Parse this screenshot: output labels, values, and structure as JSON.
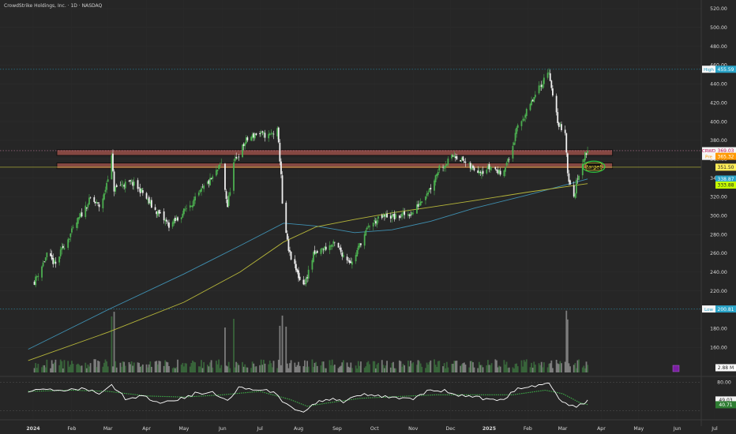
{
  "header": {
    "title": "CrowdStrike Holdings, Inc. · 1D · NASDAQ"
  },
  "colors": {
    "background": "#262626",
    "up": "#4caf50",
    "down": "#f0f0f0",
    "ma_blue": "#3f8fb0",
    "ma_yellow": "#b6b63a",
    "zone": "#a0524a",
    "rsi": "#ffffff",
    "rsi_ma": "#3fb24a"
  },
  "chart_data": {
    "type": "candlestick",
    "price_axis": {
      "range": [
        130,
        525
      ],
      "ticks": [
        520,
        500,
        480,
        460,
        440,
        420,
        400,
        380,
        360,
        340,
        320,
        300,
        280,
        260,
        240,
        220,
        200,
        180,
        160
      ]
    },
    "time_axis": {
      "labels": [
        "2024",
        "Feb",
        "Mar",
        "Apr",
        "May",
        "Jun",
        "Jul",
        "Aug",
        "Sep",
        "Oct",
        "Nov",
        "Dec",
        "2025",
        "Feb",
        "Mar",
        "Apr",
        "May",
        "Jun",
        "Jul"
      ]
    },
    "price_path": [
      [
        "2024-01-02",
        230
      ],
      [
        "2024-01-12",
        258
      ],
      [
        "2024-01-19",
        248
      ],
      [
        "2024-01-24",
        264
      ],
      [
        "2024-02-01",
        283
      ],
      [
        "2024-02-09",
        302
      ],
      [
        "2024-02-16",
        318
      ],
      [
        "2024-02-23",
        310
      ],
      [
        "2024-02-27",
        322
      ],
      [
        "2024-03-04",
        362
      ],
      [
        "2024-03-06",
        328
      ],
      [
        "2024-03-12",
        333
      ],
      [
        "2024-03-20",
        335
      ],
      [
        "2024-03-28",
        326
      ],
      [
        "2024-04-05",
        310
      ],
      [
        "2024-04-12",
        300
      ],
      [
        "2024-04-19",
        290
      ],
      [
        "2024-04-26",
        296
      ],
      [
        "2024-05-03",
        308
      ],
      [
        "2024-05-10",
        317
      ],
      [
        "2024-05-17",
        330
      ],
      [
        "2024-05-24",
        340
      ],
      [
        "2024-05-31",
        355
      ],
      [
        "2024-06-05",
        310
      ],
      [
        "2024-06-10",
        355
      ],
      [
        "2024-06-20",
        380
      ],
      [
        "2024-06-28",
        387
      ],
      [
        "2024-07-08",
        385
      ],
      [
        "2024-07-15",
        390
      ],
      [
        "2024-07-18",
        345
      ],
      [
        "2024-07-19",
        310
      ],
      [
        "2024-07-24",
        262
      ],
      [
        "2024-08-02",
        232
      ],
      [
        "2024-08-06",
        228
      ],
      [
        "2024-08-13",
        258
      ],
      [
        "2024-08-21",
        265
      ],
      [
        "2024-08-30",
        270
      ],
      [
        "2024-09-06",
        258
      ],
      [
        "2024-09-13",
        250
      ],
      [
        "2024-09-20",
        272
      ],
      [
        "2024-09-27",
        290
      ],
      [
        "2024-10-04",
        296
      ],
      [
        "2024-10-11",
        300
      ],
      [
        "2024-10-18",
        298
      ],
      [
        "2024-10-25",
        301
      ],
      [
        "2024-11-01",
        303
      ],
      [
        "2024-11-08",
        318
      ],
      [
        "2024-11-15",
        330
      ],
      [
        "2024-11-22",
        352
      ],
      [
        "2024-11-27",
        355
      ],
      [
        "2024-12-04",
        365
      ],
      [
        "2024-12-11",
        358
      ],
      [
        "2024-12-18",
        350
      ],
      [
        "2024-12-27",
        348
      ],
      [
        "2025-01-03",
        352
      ],
      [
        "2025-01-10",
        345
      ],
      [
        "2025-01-17",
        360
      ],
      [
        "2025-01-24",
        395
      ],
      [
        "2025-01-31",
        410
      ],
      [
        "2025-02-06",
        425
      ],
      [
        "2025-02-12",
        440
      ],
      [
        "2025-02-18",
        455
      ],
      [
        "2025-02-21",
        425
      ],
      [
        "2025-02-26",
        395
      ],
      [
        "2025-03-03",
        390
      ],
      [
        "2025-03-05",
        345
      ],
      [
        "2025-03-07",
        332
      ],
      [
        "2025-03-10",
        318
      ],
      [
        "2025-03-12",
        335
      ],
      [
        "2025-03-14",
        345
      ],
      [
        "2025-03-18",
        362
      ],
      [
        "2025-03-21",
        369
      ]
    ],
    "moving_averages": [
      {
        "color": "blue",
        "points": [
          [
            "2023-12-28",
            158
          ],
          [
            "2024-03-01",
            200
          ],
          [
            "2024-05-01",
            238
          ],
          [
            "2024-06-15",
            268
          ],
          [
            "2024-07-20",
            292
          ],
          [
            "2024-08-15",
            289
          ],
          [
            "2024-09-15",
            282
          ],
          [
            "2024-10-15",
            285
          ],
          [
            "2024-11-15",
            294
          ],
          [
            "2024-12-20",
            308
          ],
          [
            "2025-02-01",
            322
          ],
          [
            "2025-03-21",
            339
          ]
        ]
      },
      {
        "color": "yellow",
        "points": [
          [
            "2023-12-28",
            146
          ],
          [
            "2024-03-01",
            176
          ],
          [
            "2024-05-01",
            208
          ],
          [
            "2024-06-15",
            240
          ],
          [
            "2024-07-20",
            272
          ],
          [
            "2024-08-15",
            288
          ],
          [
            "2024-09-15",
            296
          ],
          [
            "2024-10-15",
            303
          ],
          [
            "2024-11-15",
            309
          ],
          [
            "2024-12-20",
            316
          ],
          [
            "2025-02-01",
            325
          ],
          [
            "2025-03-21",
            334
          ]
        ]
      }
    ],
    "resistance_zones": [
      {
        "top": 370,
        "bottom": 364
      },
      {
        "top": 356,
        "bottom": 350
      }
    ],
    "price_lines": [
      {
        "value": 455.59,
        "style": "dotted",
        "color": "#29a3c7"
      },
      {
        "value": 351.5,
        "style": "solid",
        "color": "#c8c83a"
      },
      {
        "value": 369.03,
        "style": "dotted",
        "color": "#e089b0"
      },
      {
        "value": 200.81,
        "style": "dotted",
        "color": "#29a3c7"
      }
    ],
    "annotations": [
      {
        "text": "target",
        "date": "2025-03-26",
        "price": 352
      }
    ],
    "price_labels": [
      {
        "prefix": "High",
        "value": "455.59",
        "price": 455.59,
        "bg": "#29a3c7",
        "fg": "#ffffff"
      },
      {
        "prefix": "CRWD",
        "value": "369.03",
        "price": 369.03,
        "bg": "#f5f5f5",
        "fg": "#c2185b"
      },
      {
        "prefix": "Pre",
        "value": "365.32",
        "price": 363,
        "bg": "#ff9800",
        "fg": "#ffffff"
      },
      {
        "prefix": "",
        "value": "351.50",
        "price": 351.5,
        "bg": "#ffee58",
        "fg": "#222222"
      },
      {
        "prefix": "",
        "value": "338.87",
        "price": 338.87,
        "bg": "#29a3c7",
        "fg": "#ffffff"
      },
      {
        "prefix": "",
        "value": "333.88",
        "price": 332.5,
        "bg": "#c6ff00",
        "fg": "#222222"
      },
      {
        "prefix": "Low",
        "value": "200.81",
        "price": 200.81,
        "bg": "#29a3c7",
        "fg": "#ffffff"
      }
    ],
    "volume": {
      "label": "2.88 M"
    },
    "rsi": {
      "range": [
        20,
        90
      ],
      "ticks": [
        "80.00"
      ],
      "labels": [
        {
          "value": "49.03",
          "level": 49,
          "bg": "#f5f5f5",
          "fg": "#222222"
        },
        {
          "value": "40.71",
          "level": 40.7,
          "bg": "#2e7d32",
          "fg": "#ffffff"
        }
      ],
      "path": [
        [
          "2023-12-28",
          62
        ],
        [
          "2024-01-12",
          68
        ],
        [
          "2024-01-26",
          64
        ],
        [
          "2024-02-09",
          70
        ],
        [
          "2024-02-23",
          60
        ],
        [
          "2024-03-04",
          74
        ],
        [
          "2024-03-15",
          52
        ],
        [
          "2024-03-29",
          55
        ],
        [
          "2024-04-12",
          46
        ],
        [
          "2024-04-26",
          50
        ],
        [
          "2024-05-10",
          60
        ],
        [
          "2024-05-24",
          62
        ],
        [
          "2024-06-05",
          50
        ],
        [
          "2024-06-14",
          70
        ],
        [
          "2024-06-28",
          68
        ],
        [
          "2024-07-12",
          63
        ],
        [
          "2024-07-19",
          48
        ],
        [
          "2024-07-26",
          35
        ],
        [
          "2024-08-05",
          28
        ],
        [
          "2024-08-12",
          38
        ],
        [
          "2024-08-23",
          52
        ],
        [
          "2024-09-06",
          45
        ],
        [
          "2024-09-20",
          58
        ],
        [
          "2024-10-04",
          56
        ],
        [
          "2024-10-18",
          54
        ],
        [
          "2024-11-01",
          52
        ],
        [
          "2024-11-15",
          66
        ],
        [
          "2024-11-29",
          64
        ],
        [
          "2024-12-13",
          54
        ],
        [
          "2024-12-27",
          52
        ],
        [
          "2025-01-10",
          48
        ],
        [
          "2025-01-24",
          68
        ],
        [
          "2025-02-07",
          72
        ],
        [
          "2025-02-18",
          78
        ],
        [
          "2025-02-26",
          50
        ],
        [
          "2025-03-06",
          42
        ],
        [
          "2025-03-12",
          36
        ],
        [
          "2025-03-18",
          44
        ],
        [
          "2025-03-21",
          49
        ]
      ],
      "ma_path": [
        [
          "2023-12-28",
          64
        ],
        [
          "2024-02-01",
          66
        ],
        [
          "2024-03-01",
          64
        ],
        [
          "2024-04-01",
          56
        ],
        [
          "2024-05-01",
          54
        ],
        [
          "2024-06-01",
          58
        ],
        [
          "2024-07-01",
          64
        ],
        [
          "2024-07-25",
          50
        ],
        [
          "2024-08-08",
          38
        ],
        [
          "2024-08-25",
          44
        ],
        [
          "2024-09-20",
          52
        ],
        [
          "2024-10-20",
          55
        ],
        [
          "2024-11-20",
          58
        ],
        [
          "2024-12-20",
          58
        ],
        [
          "2025-01-20",
          58
        ],
        [
          "2025-02-15",
          66
        ],
        [
          "2025-03-01",
          60
        ],
        [
          "2025-03-15",
          44
        ],
        [
          "2025-03-21",
          41
        ]
      ]
    }
  }
}
